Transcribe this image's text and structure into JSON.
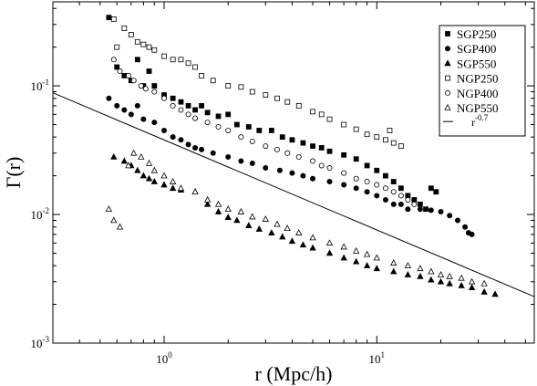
{
  "chart_data": {
    "type": "scatter",
    "title": "",
    "xlabel": "r (Mpc/h)",
    "ylabel": "Γ(r)",
    "xscale": "log",
    "yscale": "log",
    "xlim": [
      0.3,
      55
    ],
    "ylim": [
      0.001,
      0.45
    ],
    "x_ticks": [
      {
        "value": 1,
        "base": "10",
        "exp": "0"
      },
      {
        "value": 10,
        "base": "10",
        "exp": "1"
      }
    ],
    "y_ticks": [
      {
        "value": 0.001,
        "base": "10",
        "exp": "-3"
      },
      {
        "value": 0.01,
        "base": "10",
        "exp": "-2"
      },
      {
        "value": 0.1,
        "base": "10",
        "exp": "-1"
      }
    ],
    "legend_position": "top-right",
    "grid": false,
    "series": [
      {
        "name": "SGP250",
        "marker": "square-filled",
        "points": [
          [
            0.55,
            0.34
          ],
          [
            0.6,
            0.14
          ],
          [
            0.65,
            0.12
          ],
          [
            0.7,
            0.11
          ],
          [
            0.75,
            0.16
          ],
          [
            0.8,
            0.1
          ],
          [
            0.85,
            0.13
          ],
          [
            0.9,
            0.1
          ],
          [
            1.0,
            0.085
          ],
          [
            1.1,
            0.08
          ],
          [
            1.2,
            0.075
          ],
          [
            1.3,
            0.07
          ],
          [
            1.4,
            0.065
          ],
          [
            1.5,
            0.07
          ],
          [
            1.6,
            0.062
          ],
          [
            1.8,
            0.058
          ],
          [
            2.0,
            0.06
          ],
          [
            2.2,
            0.05
          ],
          [
            2.5,
            0.048
          ],
          [
            2.8,
            0.045
          ],
          [
            3.2,
            0.045
          ],
          [
            3.6,
            0.04
          ],
          [
            4.0,
            0.038
          ],
          [
            4.5,
            0.036
          ],
          [
            5.0,
            0.034
          ],
          [
            5.5,
            0.033
          ],
          [
            6.0,
            0.031
          ],
          [
            7.0,
            0.029
          ],
          [
            8.0,
            0.027
          ],
          [
            9.0,
            0.024
          ],
          [
            10.0,
            0.022
          ],
          [
            11.0,
            0.02
          ],
          [
            12.0,
            0.018
          ],
          [
            13.0,
            0.016
          ],
          [
            14.0,
            0.014
          ],
          [
            15.0,
            0.013
          ],
          [
            16.0,
            0.012
          ],
          [
            17.0,
            0.011
          ],
          [
            18.0,
            0.016
          ],
          [
            19.0,
            0.015
          ]
        ]
      },
      {
        "name": "SGP400",
        "marker": "circle-filled",
        "points": [
          [
            0.55,
            0.08
          ],
          [
            0.6,
            0.07
          ],
          [
            0.65,
            0.065
          ],
          [
            0.7,
            0.06
          ],
          [
            0.75,
            0.07
          ],
          [
            0.8,
            0.055
          ],
          [
            0.9,
            0.052
          ],
          [
            1.0,
            0.045
          ],
          [
            1.1,
            0.04
          ],
          [
            1.2,
            0.038
          ],
          [
            1.3,
            0.035
          ],
          [
            1.4,
            0.033
          ],
          [
            1.5,
            0.032
          ],
          [
            1.7,
            0.03
          ],
          [
            2.0,
            0.028
          ],
          [
            2.3,
            0.026
          ],
          [
            2.6,
            0.025
          ],
          [
            3.0,
            0.023
          ],
          [
            3.5,
            0.022
          ],
          [
            4.0,
            0.021
          ],
          [
            4.5,
            0.02
          ],
          [
            5.0,
            0.019
          ],
          [
            6.0,
            0.018
          ],
          [
            7.0,
            0.017
          ],
          [
            8.0,
            0.016
          ],
          [
            9.0,
            0.015
          ],
          [
            10.0,
            0.014
          ],
          [
            11.0,
            0.013
          ],
          [
            12.0,
            0.012
          ],
          [
            13.0,
            0.012
          ],
          [
            14.0,
            0.011
          ],
          [
            16.0,
            0.011
          ],
          [
            18.0,
            0.0108
          ],
          [
            20.0,
            0.0105
          ],
          [
            22.0,
            0.0098
          ],
          [
            24.0,
            0.009
          ],
          [
            26.0,
            0.008
          ],
          [
            27.0,
            0.0072
          ],
          [
            28.0,
            0.007
          ]
        ]
      },
      {
        "name": "SGP550",
        "marker": "triangle-filled",
        "points": [
          [
            0.58,
            0.028
          ],
          [
            0.65,
            0.026
          ],
          [
            0.7,
            0.024
          ],
          [
            0.75,
            0.022
          ],
          [
            0.8,
            0.02
          ],
          [
            0.85,
            0.019
          ],
          [
            0.9,
            0.018
          ],
          [
            1.0,
            0.017
          ],
          [
            1.1,
            0.016
          ],
          [
            1.2,
            0.0155
          ],
          [
            1.4,
            0.015
          ],
          [
            1.6,
            0.012
          ],
          [
            1.8,
            0.0105
          ],
          [
            2.0,
            0.0095
          ],
          [
            2.2,
            0.009
          ],
          [
            2.5,
            0.0082
          ],
          [
            2.8,
            0.0077
          ],
          [
            3.2,
            0.0072
          ],
          [
            3.6,
            0.0067
          ],
          [
            4.0,
            0.0062
          ],
          [
            4.5,
            0.0058
          ],
          [
            5.0,
            0.0055
          ],
          [
            6.0,
            0.005
          ],
          [
            7.0,
            0.0046
          ],
          [
            8.0,
            0.0043
          ],
          [
            9.0,
            0.004
          ],
          [
            10.0,
            0.0038
          ],
          [
            12.0,
            0.0036
          ],
          [
            14.0,
            0.0034
          ],
          [
            16.0,
            0.0033
          ],
          [
            18.0,
            0.0031
          ],
          [
            20.0,
            0.003
          ],
          [
            22.0,
            0.0029
          ],
          [
            25.0,
            0.0028
          ],
          [
            28.0,
            0.0027
          ],
          [
            32.0,
            0.0025
          ],
          [
            36.0,
            0.0024
          ]
        ]
      },
      {
        "name": "NGP250",
        "marker": "square-open",
        "points": [
          [
            0.58,
            0.33
          ],
          [
            0.6,
            0.2
          ],
          [
            0.65,
            0.28
          ],
          [
            0.7,
            0.25
          ],
          [
            0.75,
            0.22
          ],
          [
            0.8,
            0.21
          ],
          [
            0.85,
            0.2
          ],
          [
            0.9,
            0.19
          ],
          [
            1.0,
            0.17
          ],
          [
            1.1,
            0.16
          ],
          [
            1.2,
            0.16
          ],
          [
            1.3,
            0.15
          ],
          [
            1.4,
            0.14
          ],
          [
            1.5,
            0.12
          ],
          [
            1.7,
            0.11
          ],
          [
            2.0,
            0.1
          ],
          [
            2.3,
            0.098
          ],
          [
            2.6,
            0.09
          ],
          [
            3.0,
            0.085
          ],
          [
            3.4,
            0.08
          ],
          [
            3.8,
            0.075
          ],
          [
            4.3,
            0.07
          ],
          [
            5.0,
            0.063
          ],
          [
            5.5,
            0.06
          ],
          [
            6.0,
            0.055
          ],
          [
            7.0,
            0.05
          ],
          [
            8.0,
            0.046
          ],
          [
            9.0,
            0.042
          ],
          [
            10.0,
            0.04
          ],
          [
            11.0,
            0.038
          ],
          [
            12.0,
            0.036
          ],
          [
            13.0,
            0.034
          ],
          [
            11.5,
            0.045
          ]
        ]
      },
      {
        "name": "NGP400",
        "marker": "circle-open",
        "points": [
          [
            0.58,
            0.16
          ],
          [
            0.62,
            0.13
          ],
          [
            0.68,
            0.12
          ],
          [
            0.72,
            0.11
          ],
          [
            0.78,
            0.1
          ],
          [
            0.82,
            0.095
          ],
          [
            0.9,
            0.09
          ],
          [
            1.0,
            0.08
          ],
          [
            1.1,
            0.07
          ],
          [
            1.2,
            0.065
          ],
          [
            1.3,
            0.06
          ],
          [
            1.4,
            0.056
          ],
          [
            1.6,
            0.052
          ],
          [
            1.8,
            0.048
          ],
          [
            2.0,
            0.045
          ],
          [
            2.3,
            0.04
          ],
          [
            2.6,
            0.037
          ],
          [
            3.0,
            0.034
          ],
          [
            3.4,
            0.032
          ],
          [
            3.8,
            0.03
          ],
          [
            4.3,
            0.028
          ],
          [
            5.0,
            0.026
          ],
          [
            5.5,
            0.024
          ],
          [
            6.0,
            0.023
          ],
          [
            7.0,
            0.021
          ],
          [
            8.0,
            0.019
          ],
          [
            9.0,
            0.018
          ],
          [
            10.0,
            0.017
          ],
          [
            11.0,
            0.016
          ],
          [
            12.0,
            0.015
          ],
          [
            13.0,
            0.014
          ],
          [
            14.0,
            0.013
          ],
          [
            15.0,
            0.012
          ]
        ]
      },
      {
        "name": "NGP550",
        "marker": "triangle-open",
        "points": [
          [
            0.55,
            0.011
          ],
          [
            0.58,
            0.009
          ],
          [
            0.62,
            0.008
          ],
          [
            0.68,
            0.024
          ],
          [
            0.72,
            0.03
          ],
          [
            0.78,
            0.028
          ],
          [
            0.85,
            0.025
          ],
          [
            0.9,
            0.022
          ],
          [
            1.0,
            0.02
          ],
          [
            1.1,
            0.018
          ],
          [
            1.2,
            0.016
          ],
          [
            1.4,
            0.015
          ],
          [
            1.6,
            0.013
          ],
          [
            1.8,
            0.012
          ],
          [
            2.0,
            0.011
          ],
          [
            2.3,
            0.0105
          ],
          [
            2.6,
            0.0096
          ],
          [
            3.0,
            0.0092
          ],
          [
            3.4,
            0.0084
          ],
          [
            3.8,
            0.0078
          ],
          [
            4.3,
            0.0072
          ],
          [
            5.0,
            0.0066
          ],
          [
            6.0,
            0.006
          ],
          [
            7.0,
            0.0056
          ],
          [
            8.0,
            0.0052
          ],
          [
            9.0,
            0.0049
          ],
          [
            10.0,
            0.0046
          ],
          [
            12.0,
            0.0042
          ],
          [
            14.0,
            0.004
          ],
          [
            16.0,
            0.0038
          ],
          [
            18.0,
            0.0036
          ],
          [
            20.0,
            0.0034
          ],
          [
            22.0,
            0.0033
          ],
          [
            25.0,
            0.0032
          ],
          [
            28.0,
            0.003
          ],
          [
            32.0,
            0.0029
          ]
        ]
      }
    ],
    "reference_line": {
      "name": "r^-0.7",
      "label_base": "r",
      "label_exp": "-0.7",
      "exponent": -0.7,
      "value_at_1": 0.038
    }
  }
}
